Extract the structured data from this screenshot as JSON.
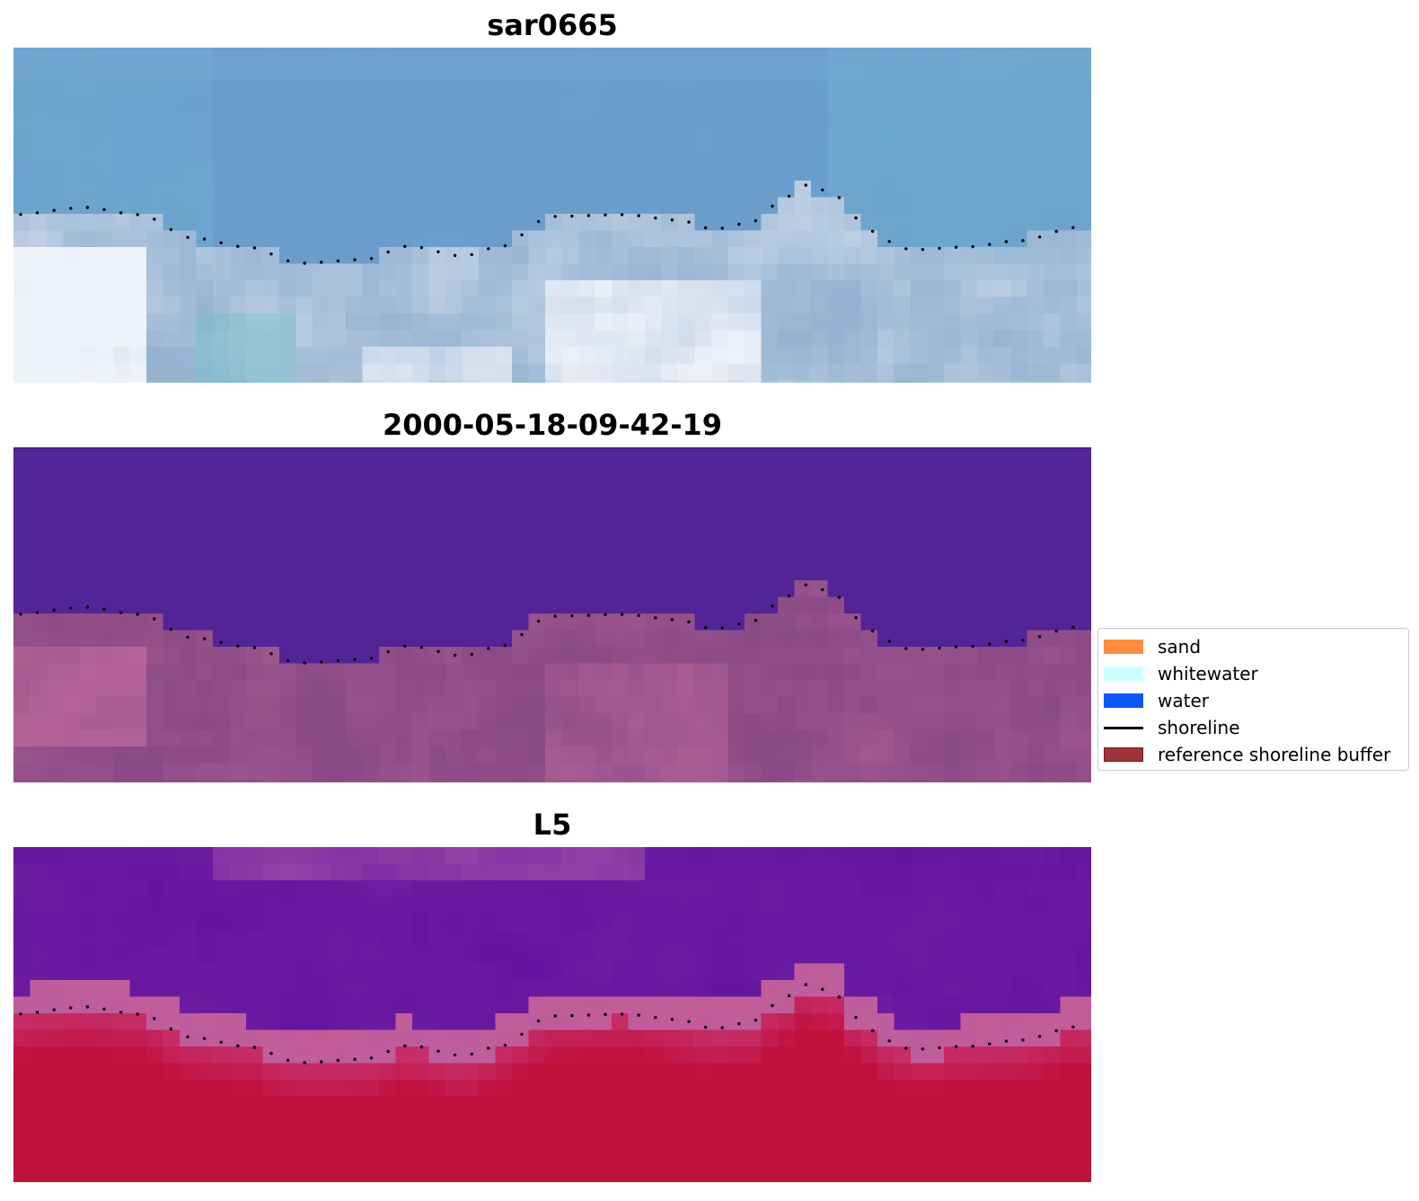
{
  "panels": [
    {
      "title": "sar0665",
      "style": "rgb"
    },
    {
      "title": "2000-05-18-09-42-19",
      "style": "classified"
    },
    {
      "title": "L5",
      "style": "index"
    }
  ],
  "legend": {
    "items": [
      {
        "label": "sand",
        "color": "#ff8c3f",
        "type": "patch"
      },
      {
        "label": "whitewater",
        "color": "#ccffff",
        "type": "patch"
      },
      {
        "label": "water",
        "color": "#0b58f4",
        "type": "patch"
      },
      {
        "label": "shoreline",
        "color": "#000000",
        "type": "line"
      },
      {
        "label": "reference shoreline buffer",
        "color": "#a0323a",
        "type": "patch"
      }
    ]
  },
  "colors": {
    "rgb_water": "#6a9dcc",
    "classified_water": "#532497",
    "classified_land": "#8a4a86",
    "index_low": "#6a1aa0",
    "index_high": "#c0103c",
    "shoreline": "#000000"
  }
}
